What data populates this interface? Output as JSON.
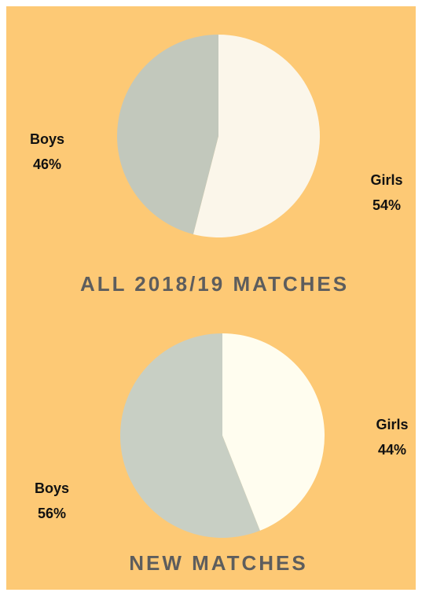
{
  "chart_data": [
    {
      "type": "pie",
      "title": "ALL 2018/19 MATCHES",
      "categories": [
        "Girls",
        "Boys"
      ],
      "values": [
        54,
        46
      ],
      "value_labels": [
        "54%",
        "46%"
      ],
      "colors": [
        "#fbf6ea",
        "#c2c8bc"
      ]
    },
    {
      "type": "pie",
      "title": "NEW MATCHES",
      "categories": [
        "Girls",
        "Boys"
      ],
      "values": [
        44,
        56
      ],
      "value_labels": [
        "44%",
        "56%"
      ],
      "colors": [
        "#fffdef",
        "#c8cfc4"
      ]
    }
  ]
}
